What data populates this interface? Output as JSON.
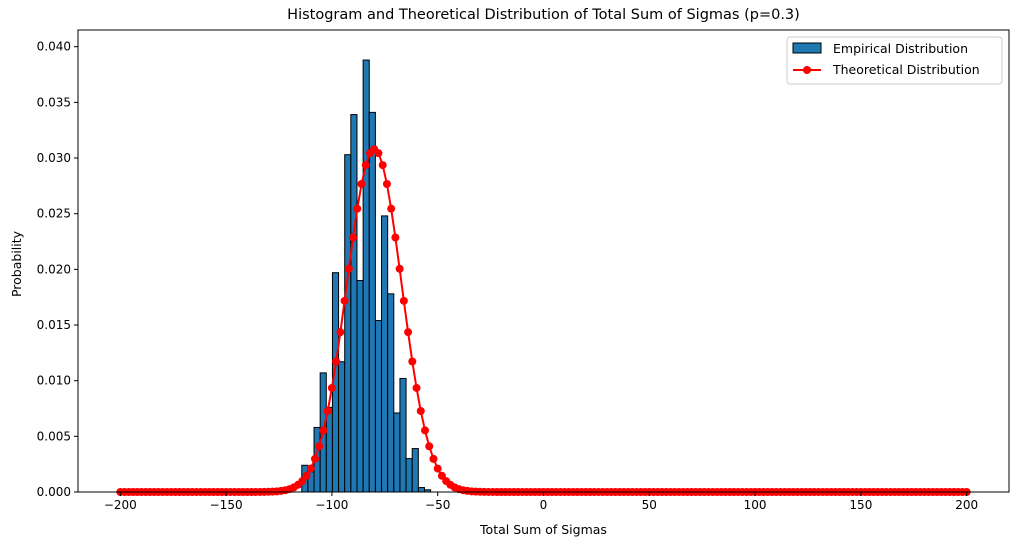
{
  "chart_data": {
    "type": "bar",
    "title": "Histogram and Theoretical Distribution of Total Sum of Sigmas (p=0.3)",
    "xlabel": "Total Sum of Sigmas",
    "ylabel": "Probability",
    "xlim": [
      -220,
      220
    ],
    "ylim": [
      0,
      0.0415
    ],
    "xticks": [
      -200,
      -150,
      -100,
      -50,
      0,
      50,
      100,
      150,
      200
    ],
    "yticks": [
      0.0,
      0.005,
      0.01,
      0.015,
      0.02,
      0.025,
      0.03,
      0.035,
      0.04
    ],
    "grid": false,
    "legend_position": "top-right",
    "colors": {
      "histogram": "#1f77b4",
      "theoretical": "#ff0000",
      "edge": "#000000"
    },
    "histogram": {
      "name": "Empirical Distribution",
      "bin_width": 2.9,
      "bins": [
        {
          "x": -112.8,
          "y": 0.0024
        },
        {
          "x": -109.9,
          "y": 0.0018
        },
        {
          "x": -107.0,
          "y": 0.0058
        },
        {
          "x": -104.1,
          "y": 0.0107
        },
        {
          "x": -101.2,
          "y": 0.0076
        },
        {
          "x": -98.3,
          "y": 0.0197
        },
        {
          "x": -95.4,
          "y": 0.0117
        },
        {
          "x": -92.5,
          "y": 0.0303
        },
        {
          "x": -89.6,
          "y": 0.0339
        },
        {
          "x": -86.7,
          "y": 0.019
        },
        {
          "x": -83.8,
          "y": 0.0388
        },
        {
          "x": -80.9,
          "y": 0.0341
        },
        {
          "x": -78.0,
          "y": 0.0154
        },
        {
          "x": -75.1,
          "y": 0.0248
        },
        {
          "x": -72.2,
          "y": 0.0178
        },
        {
          "x": -69.3,
          "y": 0.0071
        },
        {
          "x": -66.4,
          "y": 0.0102
        },
        {
          "x": -63.5,
          "y": 0.003
        },
        {
          "x": -60.6,
          "y": 0.0039
        },
        {
          "x": -57.7,
          "y": 0.0004
        },
        {
          "x": -54.8,
          "y": 0.0002
        }
      ]
    },
    "theoretical": {
      "name": "Theoretical Distribution",
      "x_range": [
        -200,
        200
      ],
      "step": 2,
      "mean": -80,
      "sd": 12.95,
      "peak": 0.0308
    }
  }
}
